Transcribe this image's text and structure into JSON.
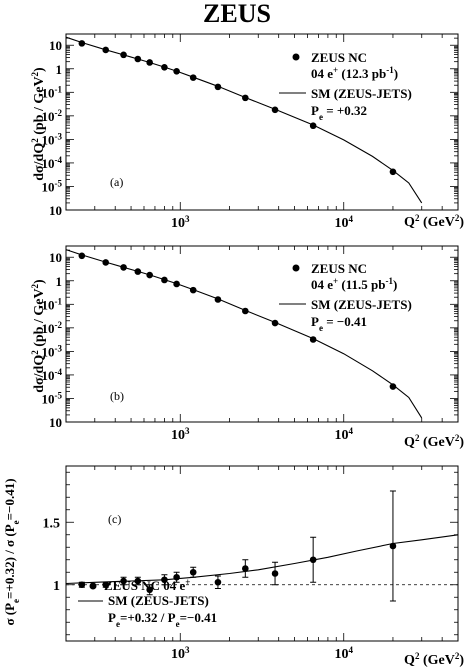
{
  "figure": {
    "title": "ZEUS"
  },
  "chart_data": [
    {
      "id": "a",
      "type": "scatter",
      "panel_label": "(a)",
      "xscale": "log",
      "yscale": "log",
      "xlim": [
        200,
        50000
      ],
      "ylim": [
        1e-06,
        30
      ],
      "xlabel": "Q² (GeV²)",
      "ylabel": "dσ/dQ² (pb / GeV²)",
      "xtick_labels": [
        {
          "base": "10",
          "exp": "3"
        },
        {
          "base": "10",
          "exp": "4"
        }
      ],
      "ytick_labels": [
        {
          "base": "10",
          "exp": ""
        },
        {
          "base": "1",
          "exp": ""
        },
        {
          "base": "10",
          "exp": "-1"
        },
        {
          "base": "10",
          "exp": "-2"
        },
        {
          "base": "10",
          "exp": "-3"
        },
        {
          "base": "10",
          "exp": "-4"
        },
        {
          "base": "10",
          "exp": "-5"
        },
        {
          "base": "10",
          "exp": ""
        }
      ],
      "legend": {
        "position": "top-right",
        "data_label": "ZEUS NC",
        "data_label2_pre": "04 e",
        "data_label2_sup": "+",
        "data_label2_post": " (12.3 pb",
        "data_label2_sup2": "-1",
        "data_label2_end": ")",
        "model_label": "SM (ZEUS-JETS)",
        "pol_pre": "P",
        "pol_sub": "e",
        "pol_post": " = +0.32"
      },
      "data": {
        "x": [
          250,
          350,
          450,
          550,
          650,
          800,
          950,
          1200,
          1700,
          2500,
          3800,
          6500,
          20000
        ],
        "y": [
          12.0,
          6.3,
          3.9,
          2.6,
          1.85,
          1.15,
          0.78,
          0.42,
          0.17,
          0.058,
          0.018,
          0.0038,
          4.2e-05
        ]
      },
      "model": {
        "x": [
          200,
          250,
          350,
          450,
          550,
          650,
          800,
          950,
          1200,
          1700,
          2500,
          3800,
          6500,
          10000,
          15000,
          20000,
          25000,
          30000
        ],
        "y": [
          22,
          13,
          6.4,
          3.9,
          2.6,
          1.85,
          1.18,
          0.8,
          0.44,
          0.18,
          0.06,
          0.019,
          0.0041,
          0.00095,
          0.00019,
          4.8e-05,
          1.4e-05,
          2e-06
        ]
      }
    },
    {
      "id": "b",
      "type": "scatter",
      "panel_label": "(b)",
      "xscale": "log",
      "yscale": "log",
      "xlim": [
        200,
        50000
      ],
      "ylim": [
        1e-06,
        30
      ],
      "xlabel": "Q² (GeV²)",
      "ylabel": "dσ/dQ² (pb / GeV²)",
      "xtick_labels": [
        {
          "base": "10",
          "exp": "3"
        },
        {
          "base": "10",
          "exp": "4"
        }
      ],
      "ytick_labels": [
        {
          "base": "10",
          "exp": ""
        },
        {
          "base": "1",
          "exp": ""
        },
        {
          "base": "10",
          "exp": "-1"
        },
        {
          "base": "10",
          "exp": "-2"
        },
        {
          "base": "10",
          "exp": "-3"
        },
        {
          "base": "10",
          "exp": "-4"
        },
        {
          "base": "10",
          "exp": "-5"
        },
        {
          "base": "10",
          "exp": ""
        }
      ],
      "legend": {
        "position": "top-right",
        "data_label": "ZEUS NC",
        "data_label2_pre": "04 e",
        "data_label2_sup": "+",
        "data_label2_post": " (11.5 pb",
        "data_label2_sup2": "-1",
        "data_label2_end": ")",
        "model_label": "SM (ZEUS-JETS)",
        "pol_pre": "P",
        "pol_sub": "e",
        "pol_post": " = −0.41"
      },
      "data": {
        "x": [
          250,
          350,
          450,
          550,
          650,
          800,
          950,
          1200,
          1700,
          2500,
          3800,
          6500,
          20000
        ],
        "y": [
          11.5,
          6.0,
          3.7,
          2.45,
          1.75,
          1.08,
          0.73,
          0.4,
          0.16,
          0.052,
          0.016,
          0.0032,
          3.2e-05
        ]
      },
      "model": {
        "x": [
          200,
          250,
          350,
          450,
          550,
          650,
          800,
          950,
          1200,
          1700,
          2500,
          3800,
          6500,
          10000,
          15000,
          20000,
          25000,
          30000
        ],
        "y": [
          21,
          12.5,
          6.2,
          3.75,
          2.5,
          1.78,
          1.12,
          0.76,
          0.42,
          0.17,
          0.055,
          0.017,
          0.0035,
          0.0008,
          0.00015,
          3.8e-05,
          1.1e-05,
          1.5e-06
        ]
      }
    },
    {
      "id": "c",
      "type": "scatter",
      "panel_label": "(c)",
      "xscale": "log",
      "yscale": "linear",
      "xlim": [
        200,
        50000
      ],
      "ylim": [
        0.55,
        1.95
      ],
      "xlabel": "Q² (GeV²)",
      "ylabel": "σ (P_e=+0.32) / σ (P_e=−0.41)",
      "ylabel_parts": {
        "a": "σ (P",
        "sub1": "e",
        "b": "=+0.32) / σ (P",
        "sub2": "e",
        "c": "=−0.41)"
      },
      "xtick_labels": [
        {
          "base": "10",
          "exp": "3"
        },
        {
          "base": "10",
          "exp": "4"
        }
      ],
      "ytick_labels": [
        {
          "v": 1,
          "text": "1"
        },
        {
          "v": 1.5,
          "text": "1.5"
        }
      ],
      "reference_line": {
        "y": 1.0,
        "style": "dashed"
      },
      "legend": {
        "position": "bottom-left",
        "data_label_pre": "ZEUS NC 04 e",
        "data_label_sup": "+",
        "model_label": "SM (ZEUS-JETS)",
        "ratio_p1": "P",
        "ratio_s1": "e",
        "ratio_m": "=+0.32 / P",
        "ratio_s2": "e",
        "ratio_e": "=−0.41"
      },
      "data": {
        "x": [
          250,
          350,
          450,
          550,
          650,
          800,
          950,
          1200,
          1700,
          2500,
          3800,
          6500,
          20000
        ],
        "y": [
          1.0,
          1.0,
          1.03,
          1.03,
          0.96,
          1.04,
          1.06,
          1.1,
          1.02,
          1.13,
          1.09,
          1.2,
          1.31
        ],
        "yerr": [
          0.02,
          0.02,
          0.03,
          0.03,
          0.04,
          0.04,
          0.04,
          0.04,
          0.05,
          0.07,
          0.09,
          0.18,
          0.44
        ]
      },
      "model": {
        "x": [
          200,
          300,
          500,
          800,
          1200,
          2000,
          3000,
          5000,
          8000,
          12000,
          20000,
          30000,
          50000
        ],
        "y": [
          1.01,
          1.02,
          1.03,
          1.04,
          1.06,
          1.09,
          1.12,
          1.17,
          1.22,
          1.27,
          1.33,
          1.36,
          1.4
        ]
      }
    }
  ]
}
